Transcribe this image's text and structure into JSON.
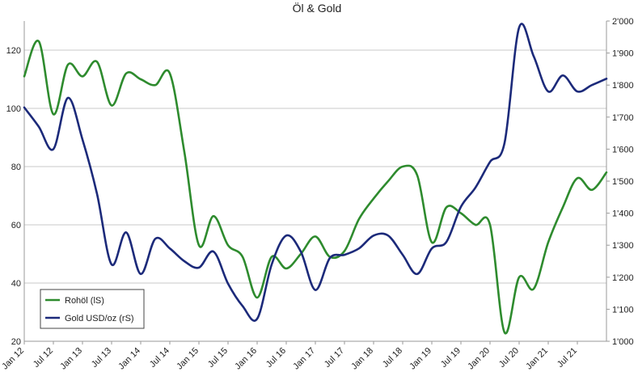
{
  "chart_data": {
    "type": "line",
    "title": "Öl & Gold",
    "x": [
      "Jan 12",
      "Apr 12",
      "Jul 12",
      "Oct 12",
      "Jan 13",
      "Apr 13",
      "Jul 13",
      "Oct 13",
      "Jan 14",
      "Apr 14",
      "Jul 14",
      "Oct 14",
      "Jan 15",
      "Apr 15",
      "Jul 15",
      "Oct 15",
      "Jan 16",
      "Apr 16",
      "Jul 16",
      "Oct 16",
      "Jan 17",
      "Apr 17",
      "Jul 17",
      "Oct 17",
      "Jan 18",
      "Apr 18",
      "Jul 18",
      "Oct 18",
      "Jan 19",
      "Apr 19",
      "Jul 19",
      "Oct 19",
      "Jan 20",
      "Apr 20",
      "Jul 20",
      "Oct 20",
      "Jan 21",
      "Apr 21",
      "Jul 21",
      "Oct 21",
      "Dec 21"
    ],
    "x_tick_labels": [
      "Jan 12",
      "Jul 12",
      "Jan 13",
      "Jul 13",
      "Jan 14",
      "Jul 14",
      "Jan 15",
      "Jul 15",
      "Jan 16",
      "Jul 16",
      "Jan 17",
      "Jul 17",
      "Jan 18",
      "Jul 18",
      "Jan 19",
      "Jul 19",
      "Jan 20",
      "Jul 20",
      "Jan 21",
      "Jul 21"
    ],
    "y_left": {
      "ylim": [
        20,
        130
      ],
      "ticks": [
        20,
        40,
        60,
        80,
        100,
        120
      ],
      "tick_labels": [
        "20",
        "40",
        "60",
        "80",
        "100",
        "120"
      ]
    },
    "y_right": {
      "ylim": [
        1000,
        2000
      ],
      "ticks": [
        1000,
        1100,
        1200,
        1300,
        1400,
        1500,
        1600,
        1700,
        1800,
        1900,
        2000
      ],
      "tick_labels": [
        "1'000",
        "1'100",
        "1'200",
        "1'300",
        "1'400",
        "1'500",
        "1'600",
        "1'700",
        "1'800",
        "1'900",
        "2'000"
      ]
    },
    "grid": true,
    "legend_position": "bottom-left",
    "series": [
      {
        "name": "Rohöl (lS)",
        "axis": "left",
        "color": "#2e8b2e",
        "values": [
          111,
          123,
          98,
          115,
          111,
          116,
          101,
          112,
          110,
          108,
          112,
          85,
          53,
          63,
          53,
          49,
          35,
          49,
          45,
          50,
          56,
          49,
          51,
          62,
          69,
          75,
          80,
          77,
          54,
          66,
          64,
          60,
          60,
          23,
          42,
          38,
          54,
          66,
          76,
          72,
          78
        ]
      },
      {
        "name": "Gold USD/oz (rS)",
        "axis": "right",
        "color": "#1c2a7a",
        "values": [
          1730,
          1670,
          1600,
          1760,
          1630,
          1460,
          1240,
          1340,
          1210,
          1320,
          1290,
          1250,
          1230,
          1280,
          1180,
          1110,
          1070,
          1240,
          1330,
          1280,
          1160,
          1260,
          1270,
          1290,
          1330,
          1330,
          1270,
          1210,
          1290,
          1310,
          1420,
          1480,
          1560,
          1620,
          1980,
          1890,
          1780,
          1830,
          1780,
          1800,
          1820
        ]
      }
    ]
  },
  "legend": {
    "items": [
      {
        "label": "Rohöl (lS)",
        "color": "#2e8b2e",
        "icon": "green-line-icon"
      },
      {
        "label": "Gold USD/oz (rS)",
        "color": "#1c2a7a",
        "icon": "navy-line-icon"
      }
    ]
  }
}
